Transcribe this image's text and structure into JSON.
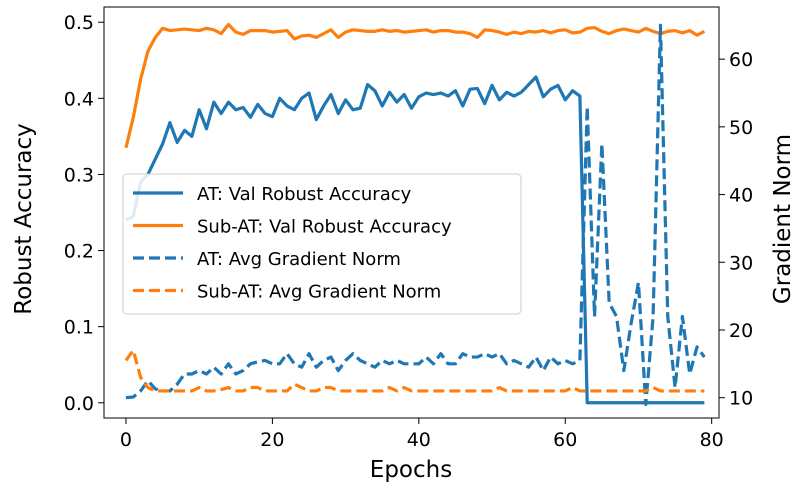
{
  "chart_data": {
    "type": "line",
    "xlabel": "Epochs",
    "ylabel": "Robust Accuracy",
    "y2label": "Gradient Norm",
    "xlim": [
      -3,
      81
    ],
    "ylim": [
      -0.02,
      0.52
    ],
    "y2lim": [
      7.0,
      67.7
    ],
    "x_ticks": [
      0,
      20,
      40,
      60,
      80
    ],
    "y_ticks": [
      0.0,
      0.1,
      0.2,
      0.3,
      0.4,
      0.5
    ],
    "y2_ticks": [
      10,
      20,
      30,
      40,
      50,
      60
    ],
    "legend_position": "center-left",
    "colors": {
      "AT": "#1f77b4",
      "SubAT": "#ff7f0e"
    },
    "x": [
      0,
      1,
      2,
      3,
      4,
      5,
      6,
      7,
      8,
      9,
      10,
      11,
      12,
      13,
      14,
      15,
      16,
      17,
      18,
      19,
      20,
      21,
      22,
      23,
      24,
      25,
      26,
      27,
      28,
      29,
      30,
      31,
      32,
      33,
      34,
      35,
      36,
      37,
      38,
      39,
      40,
      41,
      42,
      43,
      44,
      45,
      46,
      47,
      48,
      49,
      50,
      51,
      52,
      53,
      54,
      55,
      56,
      57,
      58,
      59,
      60,
      61,
      62,
      63,
      64,
      65,
      66,
      67,
      68,
      69,
      70,
      71,
      72,
      73,
      74,
      75,
      76,
      77,
      78,
      79
    ],
    "series": [
      {
        "name": "AT: Val Robust Accuracy",
        "axis": "left",
        "style": "solid",
        "color": "#1f77b4",
        "values": [
          0.24,
          0.245,
          0.29,
          0.3,
          0.32,
          0.34,
          0.368,
          0.342,
          0.358,
          0.35,
          0.385,
          0.36,
          0.395,
          0.38,
          0.395,
          0.385,
          0.388,
          0.375,
          0.392,
          0.38,
          0.376,
          0.4,
          0.39,
          0.385,
          0.4,
          0.407,
          0.372,
          0.39,
          0.405,
          0.38,
          0.398,
          0.385,
          0.387,
          0.418,
          0.41,
          0.39,
          0.408,
          0.395,
          0.405,
          0.387,
          0.402,
          0.407,
          0.405,
          0.407,
          0.403,
          0.41,
          0.39,
          0.412,
          0.413,
          0.393,
          0.417,
          0.398,
          0.408,
          0.403,
          0.408,
          0.418,
          0.428,
          0.402,
          0.412,
          0.417,
          0.398,
          0.41,
          0.403,
          0.0,
          0.0,
          0.0,
          0.0,
          0.0,
          0.0,
          0.0,
          0.0,
          0.0,
          0.0,
          0.0,
          0.0,
          0.0,
          0.0,
          0.0,
          0.0,
          0.0
        ]
      },
      {
        "name": "Sub-AT: Val Robust Accuracy",
        "axis": "left",
        "style": "solid",
        "color": "#ff7f0e",
        "values": [
          0.335,
          0.375,
          0.425,
          0.462,
          0.48,
          0.492,
          0.489,
          0.49,
          0.491,
          0.49,
          0.489,
          0.492,
          0.49,
          0.485,
          0.497,
          0.487,
          0.484,
          0.489,
          0.489,
          0.489,
          0.487,
          0.488,
          0.489,
          0.478,
          0.482,
          0.483,
          0.48,
          0.485,
          0.49,
          0.48,
          0.487,
          0.49,
          0.489,
          0.488,
          0.488,
          0.49,
          0.488,
          0.489,
          0.487,
          0.488,
          0.489,
          0.49,
          0.487,
          0.489,
          0.489,
          0.487,
          0.487,
          0.485,
          0.48,
          0.49,
          0.489,
          0.487,
          0.484,
          0.487,
          0.485,
          0.488,
          0.487,
          0.489,
          0.486,
          0.489,
          0.49,
          0.486,
          0.487,
          0.492,
          0.493,
          0.488,
          0.485,
          0.489,
          0.491,
          0.489,
          0.487,
          0.492,
          0.488,
          0.485,
          0.488,
          0.489,
          0.486,
          0.489,
          0.483,
          0.488
        ]
      },
      {
        "name": "AT: Avg Gradient Norm",
        "axis": "right",
        "style": "dashed",
        "color": "#1f77b4",
        "values": [
          10.0,
          10.1,
          11.0,
          12.5,
          11.3,
          11.0,
          11.0,
          12.0,
          13.5,
          13.5,
          14.0,
          13.5,
          14.5,
          13.5,
          15.0,
          13.5,
          14.0,
          15.0,
          15.3,
          15.5,
          15.0,
          15.0,
          16.5,
          15.0,
          14.5,
          16.5,
          14.5,
          15.5,
          16.0,
          14.0,
          15.5,
          16.5,
          15.5,
          15.0,
          14.5,
          15.5,
          15.0,
          15.5,
          15.0,
          15.0,
          15.0,
          16.0,
          15.0,
          16.5,
          15.0,
          15.0,
          16.5,
          16.0,
          16.0,
          16.5,
          16.0,
          16.5,
          15.0,
          15.5,
          15.0,
          14.5,
          16.0,
          14.0,
          16.0,
          15.0,
          15.5,
          15.0,
          15.5,
          53.0,
          22.0,
          47.5,
          24.0,
          22.0,
          14.0,
          21.0,
          27.0,
          9.0,
          22.0,
          65.0,
          22.0,
          11.5,
          22.0,
          13.5,
          17.5,
          16.0
        ]
      },
      {
        "name": "Sub-AT: Avg Gradient Norm",
        "axis": "right",
        "style": "dashed",
        "color": "#ff7f0e",
        "values": [
          15.5,
          17.0,
          13.0,
          11.5,
          11.0,
          11.0,
          11.0,
          11.0,
          11.0,
          11.0,
          11.5,
          11.0,
          11.0,
          11.2,
          11.5,
          11.0,
          11.0,
          11.5,
          11.5,
          11.0,
          11.0,
          11.0,
          11.0,
          12.0,
          11.5,
          11.0,
          11.0,
          11.5,
          11.5,
          11.0,
          11.0,
          11.0,
          11.0,
          11.0,
          11.0,
          11.0,
          11.5,
          11.0,
          11.5,
          11.0,
          11.0,
          11.0,
          11.0,
          11.0,
          11.0,
          11.0,
          11.0,
          11.0,
          11.0,
          11.0,
          11.0,
          11.5,
          11.0,
          11.0,
          11.0,
          11.0,
          11.0,
          11.0,
          11.0,
          11.0,
          11.0,
          11.5,
          11.0,
          11.0,
          11.0,
          11.0,
          11.0,
          11.0,
          11.0,
          11.0,
          11.0,
          11.0,
          11.5,
          11.0,
          11.0,
          11.0,
          11.0,
          11.0,
          11.0,
          11.0
        ]
      }
    ]
  }
}
